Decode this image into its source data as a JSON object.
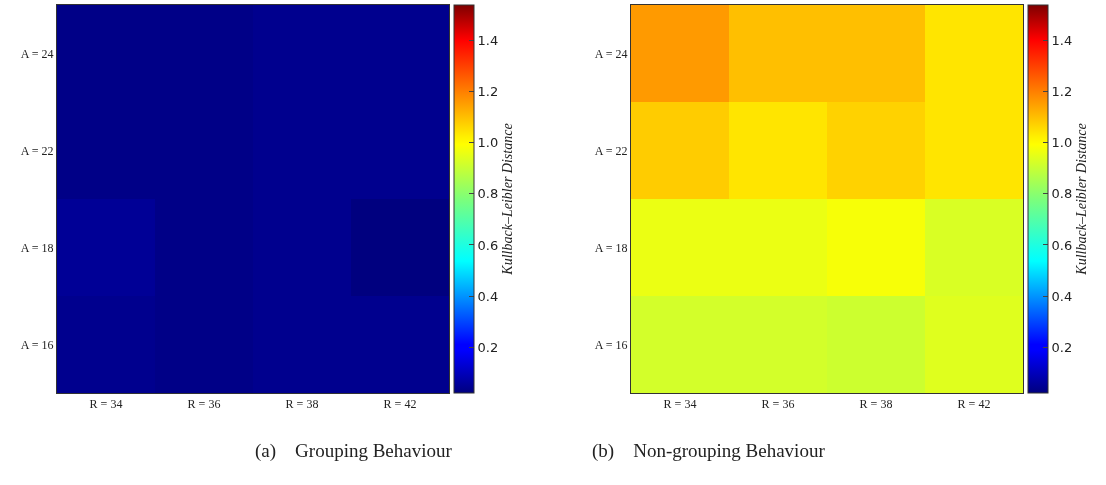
{
  "chart_data": [
    {
      "type": "heatmap",
      "categories": [
        "R = 34",
        "R = 36",
        "R = 38",
        "R = 42"
      ],
      "y_categories": [
        "A = 24",
        "A = 22",
        "A = 18",
        "A = 16"
      ],
      "cells": [
        [
          0.03,
          0.03,
          0.04,
          0.04
        ],
        [
          0.03,
          0.03,
          0.04,
          0.04
        ],
        [
          0.05,
          0.03,
          0.04,
          0.02
        ],
        [
          0.04,
          0.03,
          0.04,
          0.04
        ]
      ],
      "clim": [
        0.02,
        1.54
      ],
      "cticks": [
        0.2,
        0.4,
        0.6,
        0.8,
        {
          "value": 1,
          "label": "1.0"
        },
        1.2,
        1.4
      ],
      "clabel": "Kullback–Leibler Distance",
      "annotations": [
        "(a)    Grouping Behaviour"
      ]
    },
    {
      "type": "heatmap",
      "categories": [
        "R = 34",
        "R = 36",
        "R = 38",
        "R = 42"
      ],
      "y_categories": [
        "A = 24",
        "A = 22",
        "A = 18",
        "A = 16"
      ],
      "cells": [
        [
          1.16,
          1.1,
          1.1,
          1.04
        ],
        [
          1.08,
          1.04,
          1.07,
          1.04
        ],
        [
          0.96,
          0.96,
          0.98,
          0.93
        ],
        [
          0.92,
          0.92,
          0.91,
          0.94
        ]
      ],
      "clim": [
        0.02,
        1.54
      ],
      "cticks": [
        0.2,
        0.4,
        0.6,
        0.8,
        {
          "value": 1,
          "label": "1.0"
        },
        1.2,
        1.4
      ],
      "clabel": "Kullback–Leibler Distance",
      "annotations": [
        "(b)    Non-grouping Behaviour"
      ]
    }
  ]
}
